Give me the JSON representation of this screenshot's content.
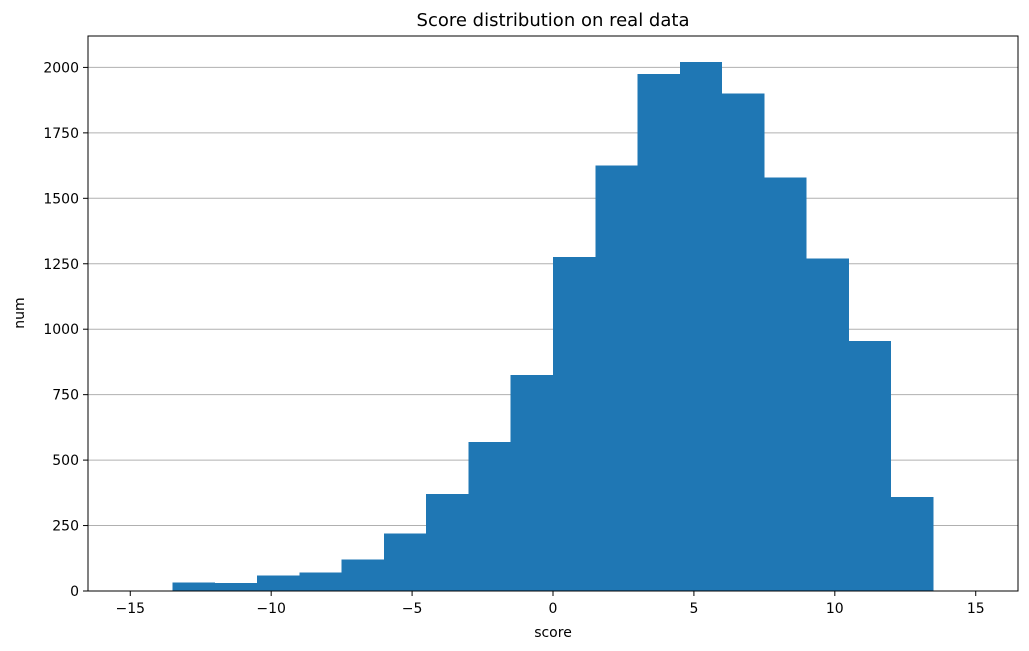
{
  "chart_data": {
    "type": "bar",
    "title": "Score distribution on real data",
    "xlabel": "score",
    "ylabel": "num",
    "xlim": [
      -16.5,
      16.5
    ],
    "ylim": [
      0,
      2120
    ],
    "grid": "y",
    "bar_color": "#1f77b4",
    "bin_edges": [
      -15,
      -13.5,
      -12,
      -10.5,
      -9,
      -7.5,
      -6,
      -4.5,
      -3,
      -1.5,
      0,
      1.5,
      3,
      4.5,
      6,
      7.5,
      9,
      10.5,
      12,
      13.5,
      15
    ],
    "values": [
      0,
      33,
      30,
      60,
      70,
      120,
      220,
      370,
      570,
      825,
      1275,
      1625,
      1975,
      2020,
      1900,
      1580,
      1270,
      955,
      360,
      0
    ],
    "xticks": [
      -15,
      -10,
      -5,
      0,
      5,
      10,
      15
    ],
    "xtick_labels": [
      "−15",
      "−10",
      "−5",
      "0",
      "5",
      "10",
      "15"
    ],
    "yticks": [
      0,
      250,
      500,
      750,
      1000,
      1250,
      1500,
      1750,
      2000
    ],
    "ytick_labels": [
      "0",
      "250",
      "500",
      "750",
      "1000",
      "1250",
      "1500",
      "1750",
      "2000"
    ]
  }
}
